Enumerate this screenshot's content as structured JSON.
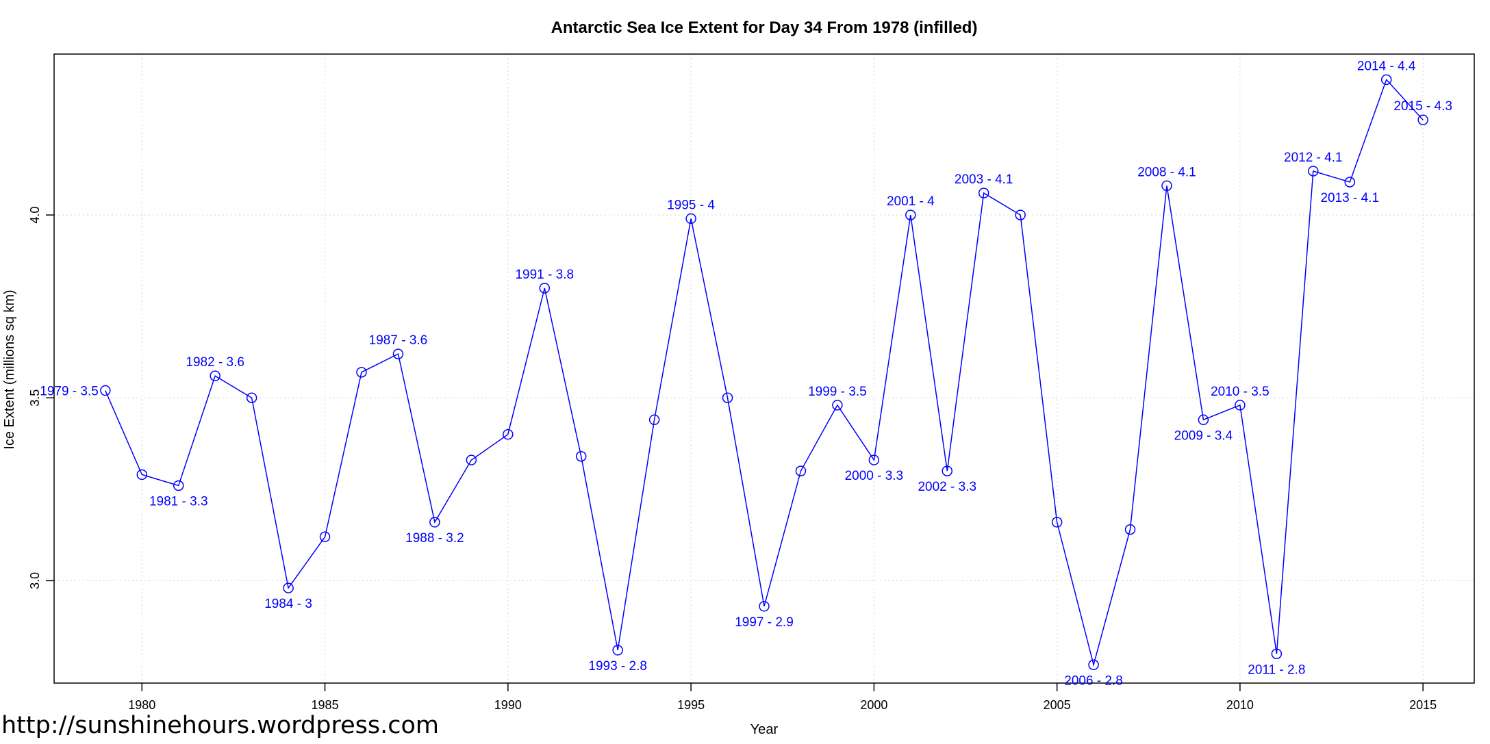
{
  "chart_data": {
    "type": "line",
    "title": "Antarctic Sea Ice Extent for Day 34 From 1978 (infilled)",
    "xlabel": "Year",
    "ylabel": "Ice Extent (millions sq km)",
    "xlim": [
      1977.6,
      2016.4
    ],
    "ylim": [
      2.72,
      4.44
    ],
    "xticks": [
      1980,
      1985,
      1990,
      1995,
      2000,
      2005,
      2010,
      2015
    ],
    "yticks": [
      3.0,
      3.5,
      4.0
    ],
    "ytick_labels": [
      "3.0",
      "3.5",
      "4.0"
    ],
    "grid": true,
    "color": "#0000ff",
    "marker": "open-circle",
    "series": [
      {
        "x": [
          1979,
          1980,
          1981,
          1982,
          1983,
          1984,
          1985,
          1986,
          1987,
          1988,
          1989,
          1990,
          1991,
          1992,
          1993,
          1994,
          1995,
          1996,
          1997,
          1998,
          1999,
          2000,
          2001,
          2002,
          2003,
          2004,
          2005,
          2006,
          2007,
          2008,
          2009,
          2010,
          2011,
          2012,
          2013,
          2014,
          2015
        ],
        "values": [
          3.52,
          3.29,
          3.26,
          3.56,
          3.5,
          2.98,
          3.12,
          3.57,
          3.62,
          3.16,
          3.33,
          3.4,
          3.8,
          3.34,
          2.81,
          3.44,
          3.99,
          3.5,
          2.93,
          3.3,
          3.48,
          3.33,
          4.0,
          3.3,
          4.06,
          4.0,
          3.16,
          2.77,
          3.14,
          4.08,
          3.44,
          3.48,
          2.8,
          4.12,
          4.09,
          4.37,
          4.26
        ]
      }
    ],
    "annotations": [
      {
        "text": "1979 - 3.5",
        "x": 1979,
        "y": 3.52,
        "pos": "left"
      },
      {
        "text": "1981 - 3.3",
        "x": 1981,
        "y": 3.26,
        "pos": "below"
      },
      {
        "text": "1982 - 3.6",
        "x": 1982,
        "y": 3.56,
        "pos": "above"
      },
      {
        "text": "1984 - 3",
        "x": 1984,
        "y": 2.98,
        "pos": "below"
      },
      {
        "text": "1987 - 3.6",
        "x": 1987,
        "y": 3.62,
        "pos": "above"
      },
      {
        "text": "1988 - 3.2",
        "x": 1988,
        "y": 3.16,
        "pos": "below"
      },
      {
        "text": "1991 - 3.8",
        "x": 1991,
        "y": 3.8,
        "pos": "above"
      },
      {
        "text": "1993 - 2.8",
        "x": 1993,
        "y": 2.81,
        "pos": "below"
      },
      {
        "text": "1995 - 4",
        "x": 1995,
        "y": 3.99,
        "pos": "above"
      },
      {
        "text": "1997 - 2.9",
        "x": 1997,
        "y": 2.93,
        "pos": "below"
      },
      {
        "text": "1999 - 3.5",
        "x": 1999,
        "y": 3.48,
        "pos": "above"
      },
      {
        "text": "2000 - 3.3",
        "x": 2000,
        "y": 3.33,
        "pos": "below"
      },
      {
        "text": "2001 - 4",
        "x": 2001,
        "y": 4.0,
        "pos": "above"
      },
      {
        "text": "2002 - 3.3",
        "x": 2002,
        "y": 3.3,
        "pos": "below"
      },
      {
        "text": "2003 - 4.1",
        "x": 2003,
        "y": 4.06,
        "pos": "above"
      },
      {
        "text": "2006 - 2.8",
        "x": 2006,
        "y": 2.77,
        "pos": "below"
      },
      {
        "text": "2008 - 4.1",
        "x": 2008,
        "y": 4.08,
        "pos": "above"
      },
      {
        "text": "2009 - 3.4",
        "x": 2009,
        "y": 3.44,
        "pos": "below"
      },
      {
        "text": "2010 - 3.5",
        "x": 2010,
        "y": 3.48,
        "pos": "above"
      },
      {
        "text": "2011 - 2.8",
        "x": 2011,
        "y": 2.8,
        "pos": "below"
      },
      {
        "text": "2012 - 4.1",
        "x": 2012,
        "y": 4.12,
        "pos": "above"
      },
      {
        "text": "2013 - 4.1",
        "x": 2013,
        "y": 4.09,
        "pos": "below"
      },
      {
        "text": "2014 - 4.4",
        "x": 2014,
        "y": 4.37,
        "pos": "above"
      },
      {
        "text": "2015 - 4.3",
        "x": 2015,
        "y": 4.26,
        "pos": "above"
      }
    ]
  },
  "watermark": "http://sunshinehours.wordpress.com"
}
